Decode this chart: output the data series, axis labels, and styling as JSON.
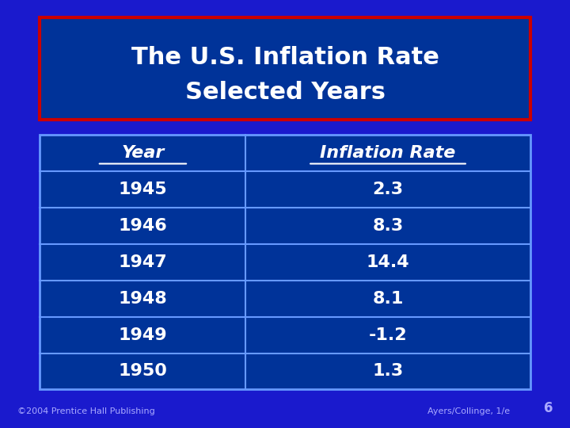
{
  "title_line1": "The U.S. Inflation Rate",
  "title_line2": "Selected Years",
  "col_headers": [
    "Year",
    "Inflation Rate"
  ],
  "rows": [
    [
      "1945",
      "2.3"
    ],
    [
      "1946",
      "8.3"
    ],
    [
      "1947",
      "14.4"
    ],
    [
      "1948",
      "8.1"
    ],
    [
      "1949",
      "-1.2"
    ],
    [
      "1950",
      "1.3"
    ]
  ],
  "bg_color": "#1a1acd",
  "table_bg": "#003399",
  "table_border": "#6699ff",
  "title_box_bg": "#003399",
  "title_box_border": "#cc0000",
  "title_color": "#ffffff",
  "header_color": "#ffffff",
  "cell_color": "#ffffff",
  "footer_left": "©2004 Prentice Hall Publishing",
  "footer_right": "Ayers/Collinge, 1/e",
  "footer_page": "6",
  "footer_color": "#aaaaff"
}
